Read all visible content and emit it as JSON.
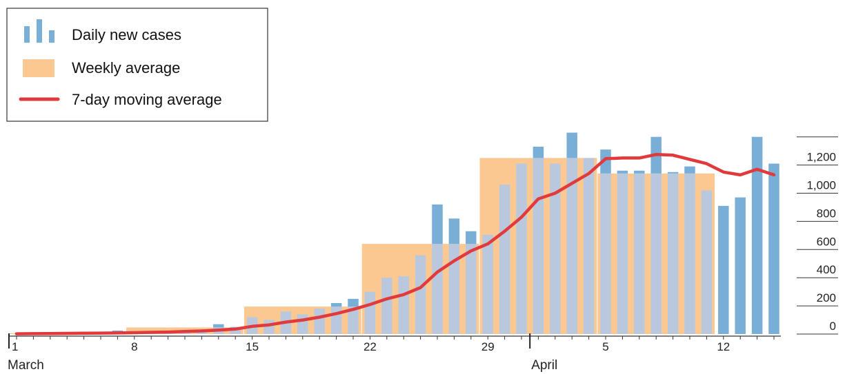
{
  "chart_data": {
    "type": "bar",
    "title": "",
    "xlabel": "",
    "ylabel": "",
    "ylim": [
      0,
      1400
    ],
    "y_ticks": [
      0,
      200,
      400,
      600,
      800,
      1000,
      1200
    ],
    "y_tick_labels": [
      "0",
      "200",
      "400",
      "600",
      "800",
      "1,000",
      "1,200"
    ],
    "x_tick_labels": [
      {
        "date": "2020-03-01",
        "label": "1"
      },
      {
        "date": "2020-03-08",
        "label": "8"
      },
      {
        "date": "2020-03-15",
        "label": "15"
      },
      {
        "date": "2020-03-22",
        "label": "22"
      },
      {
        "date": "2020-03-29",
        "label": "29"
      },
      {
        "date": "2020-04-05",
        "label": "5"
      },
      {
        "date": "2020-04-12",
        "label": "12"
      }
    ],
    "month_labels": [
      {
        "date": "2020-03-01",
        "label": "March"
      },
      {
        "date": "2020-04-01",
        "label": "April"
      }
    ],
    "legend": {
      "placement": "top-left",
      "entries": [
        "Daily new cases",
        "Weekly average",
        "7-day moving average"
      ]
    },
    "colors": {
      "daily": "#79aed6",
      "daily_overlap": "#b9c8dd",
      "weekly": "#fcc892",
      "moving": "#e03a3c"
    },
    "x": [
      "2020-03-01",
      "2020-03-02",
      "2020-03-03",
      "2020-03-04",
      "2020-03-05",
      "2020-03-06",
      "2020-03-07",
      "2020-03-08",
      "2020-03-09",
      "2020-03-10",
      "2020-03-11",
      "2020-03-12",
      "2020-03-13",
      "2020-03-14",
      "2020-03-15",
      "2020-03-16",
      "2020-03-17",
      "2020-03-18",
      "2020-03-19",
      "2020-03-20",
      "2020-03-21",
      "2020-03-22",
      "2020-03-23",
      "2020-03-24",
      "2020-03-25",
      "2020-03-26",
      "2020-03-27",
      "2020-03-28",
      "2020-03-29",
      "2020-03-30",
      "2020-03-31",
      "2020-04-01",
      "2020-04-02",
      "2020-04-03",
      "2020-04-04",
      "2020-04-05",
      "2020-04-06",
      "2020-04-07",
      "2020-04-08",
      "2020-04-09",
      "2020-04-10",
      "2020-04-11",
      "2020-04-12",
      "2020-04-13",
      "2020-04-14",
      "2020-04-15"
    ],
    "series": [
      {
        "name": "Daily new cases",
        "type": "bar",
        "values": [
          0,
          2,
          3,
          3,
          3,
          5,
          25,
          20,
          15,
          20,
          20,
          30,
          70,
          50,
          120,
          100,
          160,
          140,
          180,
          220,
          250,
          300,
          400,
          410,
          560,
          920,
          820,
          730,
          705,
          1060,
          1210,
          1330,
          1210,
          1430,
          1250,
          1310,
          1160,
          1160,
          1400,
          1150,
          1190,
          1020,
          910,
          970,
          1400,
          1210
        ]
      },
      {
        "name": "Weekly average",
        "type": "step",
        "weeks": [
          {
            "start": "2020-03-01",
            "end": "2020-03-07",
            "value": 6
          },
          {
            "start": "2020-03-08",
            "end": "2020-03-14",
            "value": 47
          },
          {
            "start": "2020-03-15",
            "end": "2020-03-21",
            "value": 195
          },
          {
            "start": "2020-03-22",
            "end": "2020-03-28",
            "value": 640
          },
          {
            "start": "2020-03-29",
            "end": "2020-04-04",
            "value": 1250
          },
          {
            "start": "2020-04-05",
            "end": "2020-04-11",
            "value": 1140
          }
        ]
      },
      {
        "name": "7-day moving average",
        "type": "line",
        "values": [
          2,
          3,
          4,
          5,
          6,
          7,
          8,
          10,
          12,
          14,
          18,
          22,
          28,
          35,
          55,
          65,
          85,
          100,
          120,
          145,
          175,
          210,
          250,
          280,
          330,
          440,
          520,
          590,
          640,
          730,
          830,
          960,
          1000,
          1070,
          1140,
          1245,
          1250,
          1250,
          1275,
          1270,
          1240,
          1210,
          1150,
          1130,
          1170,
          1130
        ]
      }
    ]
  }
}
